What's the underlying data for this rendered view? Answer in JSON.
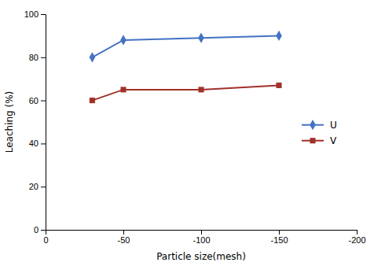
{
  "chart_data": {
    "type": "line",
    "xlabel": "Particle size(mesh)",
    "ylabel": "Leaching (%)",
    "x": [
      -30,
      -50,
      -100,
      -150
    ],
    "series": [
      {
        "name": "U",
        "color": "#4472C4",
        "marker": "diamond",
        "values": [
          80,
          88,
          89,
          90
        ]
      },
      {
        "name": "V",
        "color": "#A0312A",
        "marker": "square",
        "values": [
          60,
          65,
          65,
          67
        ]
      }
    ],
    "xlim": [
      0,
      -200
    ],
    "ylim": [
      0,
      100
    ],
    "xticks": [
      0,
      -50,
      -100,
      -150,
      -200
    ],
    "yticks": [
      0,
      20,
      40,
      60,
      80,
      100
    ],
    "grid": false,
    "legend": "right"
  }
}
